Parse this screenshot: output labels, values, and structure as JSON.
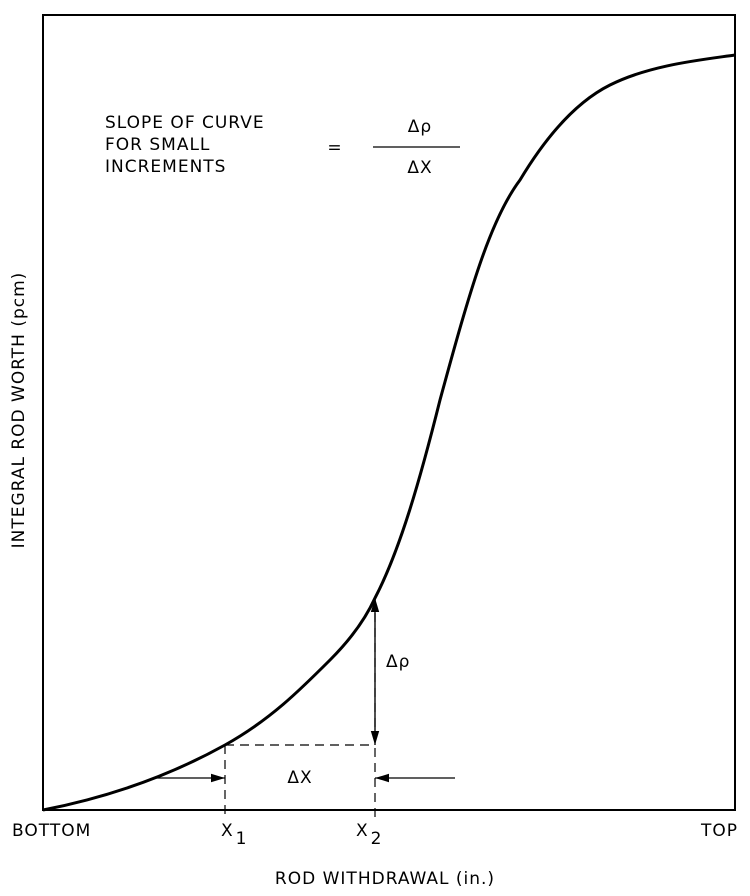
{
  "annotation": {
    "lines": [
      "SLOPE OF CURVE",
      "FOR SMALL",
      "INCREMENTS"
    ],
    "equals": "=",
    "numerator": "Δρ",
    "denominator": "ΔX"
  },
  "delta_rho_label": "Δρ",
  "delta_x_label": "ΔX",
  "x_axis": {
    "title": "ROD WITHDRAWAL (in.)",
    "left_label": "BOTTOM",
    "right_label": "TOP",
    "marks": [
      {
        "label": "X",
        "subscript": "1"
      },
      {
        "label": "X",
        "subscript": "2"
      }
    ]
  },
  "y_axis": {
    "title": "INTEGRAL ROD WORTH (pcm)"
  }
}
